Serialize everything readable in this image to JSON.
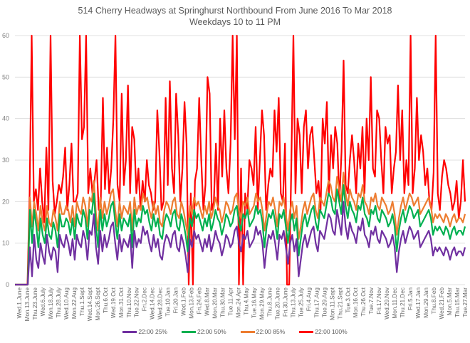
{
  "chart_data": {
    "type": "line",
    "title": "514 Cherry Headways at Springhurst Northbound From June 2016 To Mar 2018",
    "subtitle": "Weekdays 10 to 11 PM",
    "xlabel": "",
    "ylabel": "",
    "ylim": [
      0,
      60
    ],
    "yticks": [
      0,
      10,
      20,
      30,
      40,
      50,
      60
    ],
    "grid": true,
    "legend_position": "bottom",
    "x_tick_labels": [
      "Wed.1.June",
      "Mon.13.June",
      "Thu.23.June",
      "Wed.6.July",
      "Mon.18.July",
      "Thu.28.July",
      "Wed.10.Aug",
      "Mon.22.Aug",
      "Thu.1.Sept",
      "Wed.14.Sept",
      "Mon.26.Sept",
      "Thu.6.Oct",
      "Wed.19.Oct",
      "Mon.31.Oct",
      "Thu.10.Nov",
      "Tue.22.Nov",
      "Fri.2.Dec",
      "Wed.14.Dec",
      "Wed.28.Dec",
      "Tue.10.Jan",
      "Fri.20.Jan",
      "Wed.1.Feb",
      "Mon.13.Feb",
      "Fri.24.Feb",
      "Wed.8.Mar",
      "Mon.20.Mar",
      "Thu.30.Mar",
      "Tue.11.Apr",
      "Mon.24.Apr",
      "Thu.4.May",
      "Tue.16.May",
      "Mon.29.May",
      "Thu.8.June",
      "Tue.20.June",
      "Fri.30.June",
      "Thu.13.July",
      "Tue.25.July",
      "Fri.4.Aug",
      "Thu.17.Aug",
      "Tue.29.Aug",
      "Mon.11.Sept",
      "Thu.21.Sept",
      "Tue.3.Oct",
      "Mon.16.Oct",
      "Thu.26.Oct",
      "Tue.7.Nov",
      "Fri.17.Nov",
      "Wed.29.Nov",
      "Mon.11.Dec",
      "Thu.21.Dec",
      "Fri.5.Jan",
      "Wed.17.Jan",
      "Mon.29.Jan",
      "Thu.8.Feb",
      "Wed.21.Feb",
      "Mon.5.Mar",
      "Thu.15.Mar",
      "Tue.27.Mar"
    ],
    "series": [
      {
        "name": "22:00 25%",
        "color": "#7030A0",
        "values": [
          0,
          0,
          0,
          0,
          0,
          0,
          0,
          9,
          2,
          12,
          6,
          4,
          10,
          7,
          5,
          12,
          8,
          6,
          9,
          8,
          3,
          12,
          10,
          9,
          12,
          10,
          7,
          11,
          6,
          12,
          10,
          9,
          13,
          11,
          6,
          13,
          12,
          17,
          9,
          5,
          13,
          8,
          12,
          9,
          11,
          14,
          15,
          10,
          6,
          12,
          8,
          11,
          10,
          9,
          12,
          4,
          13,
          9,
          11,
          10,
          14,
          12,
          13,
          10,
          8,
          12,
          9,
          11,
          7,
          6,
          10,
          12,
          11,
          9,
          12,
          13,
          9,
          8,
          12,
          10,
          7,
          3,
          11,
          9,
          13,
          11,
          12,
          10,
          8,
          11,
          9,
          12,
          8,
          10,
          13,
          11,
          10,
          7,
          9,
          12,
          11,
          9,
          10,
          13,
          14,
          10,
          8,
          12,
          11,
          13,
          9,
          10,
          11,
          14,
          12,
          13,
          10,
          4,
          9,
          12,
          11,
          13,
          10,
          6,
          12,
          11,
          13,
          9,
          5,
          10,
          12,
          8,
          11,
          2,
          6,
          10,
          12,
          9,
          11,
          13,
          14,
          10,
          8,
          13,
          12,
          11,
          14,
          17,
          16,
          13,
          12,
          18,
          15,
          12,
          20,
          14,
          11,
          15,
          13,
          12,
          10,
          14,
          13,
          16,
          12,
          11,
          9,
          13,
          12,
          14,
          11,
          10,
          13,
          12,
          11,
          9,
          10,
          12,
          9,
          3,
          8,
          11,
          13,
          10,
          12,
          14,
          13,
          11,
          12,
          13,
          9,
          10,
          11,
          12,
          13,
          11,
          7,
          9,
          8,
          9,
          8,
          7,
          9,
          8,
          6,
          8,
          9,
          7,
          8,
          8,
          7,
          9
        ]
      },
      {
        "name": "22:00 50%",
        "color": "#00B050",
        "values": [
          0,
          0,
          0,
          0,
          0,
          0,
          0,
          18,
          10,
          18,
          14,
          9,
          16,
          12,
          10,
          16,
          12,
          11,
          15,
          13,
          9,
          17,
          14,
          14,
          16,
          15,
          12,
          16,
          11,
          17,
          15,
          14,
          18,
          16,
          11,
          18,
          17,
          22,
          14,
          9,
          18,
          13,
          17,
          14,
          16,
          19,
          20,
          15,
          11,
          17,
          13,
          16,
          15,
          14,
          17,
          9,
          18,
          14,
          16,
          15,
          19,
          17,
          18,
          15,
          13,
          17,
          14,
          16,
          12,
          11,
          15,
          17,
          16,
          14,
          17,
          18,
          14,
          13,
          17,
          15,
          12,
          8,
          16,
          14,
          18,
          16,
          17,
          15,
          13,
          16,
          14,
          17,
          13,
          15,
          18,
          16,
          15,
          12,
          14,
          17,
          16,
          14,
          15,
          18,
          19,
          15,
          13,
          17,
          16,
          18,
          14,
          15,
          16,
          19,
          17,
          18,
          15,
          9,
          14,
          17,
          16,
          18,
          15,
          11,
          17,
          16,
          18,
          14,
          10,
          15,
          17,
          13,
          16,
          7,
          11,
          15,
          17,
          14,
          16,
          18,
          19,
          15,
          13,
          18,
          17,
          16,
          19,
          22,
          21,
          18,
          17,
          23,
          20,
          17,
          24,
          19,
          16,
          20,
          18,
          17,
          15,
          19,
          18,
          21,
          17,
          16,
          14,
          18,
          17,
          19,
          16,
          15,
          18,
          17,
          16,
          14,
          15,
          17,
          14,
          8,
          13,
          16,
          18,
          15,
          17,
          19,
          18,
          16,
          17,
          18,
          14,
          15,
          16,
          17,
          18,
          16,
          12,
          14,
          13,
          14,
          13,
          12,
          14,
          13,
          11,
          13,
          14,
          12,
          13,
          13,
          12,
          14
        ]
      },
      {
        "name": "22:00 85%",
        "color": "#ED7D31",
        "values": [
          0,
          0,
          0,
          0,
          0,
          0,
          0,
          21,
          14,
          20,
          17,
          13,
          19,
          15,
          13,
          19,
          15,
          14,
          18,
          16,
          13,
          20,
          17,
          17,
          19,
          18,
          15,
          19,
          14,
          20,
          18,
          17,
          21,
          19,
          14,
          21,
          20,
          25,
          17,
          13,
          21,
          16,
          20,
          17,
          19,
          22,
          23,
          18,
          14,
          20,
          16,
          19,
          18,
          17,
          20,
          13,
          21,
          17,
          19,
          18,
          22,
          20,
          21,
          18,
          16,
          20,
          17,
          19,
          15,
          14,
          18,
          20,
          19,
          17,
          20,
          21,
          17,
          16,
          20,
          18,
          15,
          12,
          19,
          17,
          21,
          19,
          20,
          18,
          16,
          19,
          17,
          20,
          16,
          18,
          21,
          19,
          18,
          15,
          17,
          20,
          19,
          17,
          18,
          21,
          22,
          18,
          16,
          20,
          19,
          21,
          17,
          18,
          19,
          22,
          20,
          21,
          18,
          13,
          17,
          20,
          19,
          21,
          18,
          14,
          20,
          19,
          21,
          17,
          13,
          18,
          20,
          16,
          19,
          11,
          14,
          18,
          20,
          17,
          19,
          21,
          22,
          18,
          16,
          21,
          20,
          19,
          22,
          25,
          24,
          21,
          20,
          26,
          23,
          20,
          27,
          22,
          19,
          23,
          21,
          20,
          18,
          22,
          21,
          24,
          20,
          19,
          17,
          21,
          20,
          22,
          19,
          18,
          21,
          20,
          19,
          17,
          18,
          20,
          17,
          12,
          16,
          19,
          21,
          18,
          20,
          22,
          21,
          19,
          20,
          21,
          17,
          18,
          19,
          20,
          21,
          19,
          15,
          17,
          16,
          17,
          16,
          15,
          17,
          16,
          14,
          16,
          17,
          15,
          16,
          16,
          15,
          17
        ]
      },
      {
        "name": "22:00 100%",
        "color": "#FF0000",
        "values": [
          0,
          0,
          0,
          0,
          0,
          0,
          0,
          22,
          60,
          20,
          23,
          18,
          28,
          20,
          15,
          33,
          18,
          60,
          25,
          17,
          20,
          24,
          22,
          26,
          33,
          18,
          24,
          34,
          20,
          20,
          22,
          60,
          35,
          38,
          60,
          22,
          28,
          22,
          25,
          30,
          18,
          20,
          45,
          23,
          33,
          22,
          28,
          40,
          60,
          24,
          20,
          46,
          24,
          30,
          48,
          22,
          38,
          35,
          22,
          28,
          18,
          25,
          20,
          30,
          24,
          22,
          18,
          20,
          42,
          32,
          18,
          20,
          45,
          24,
          49,
          28,
          22,
          46,
          36,
          20,
          28,
          44,
          34,
          0,
          22,
          0,
          25,
          28,
          45,
          30,
          18,
          24,
          50,
          46,
          18,
          20,
          34,
          18,
          40,
          26,
          42,
          28,
          22,
          34,
          60,
          35,
          60,
          0,
          28,
          0,
          22,
          18,
          30,
          28,
          24,
          38,
          18,
          30,
          42,
          36,
          18,
          24,
          28,
          26,
          42,
          32,
          45,
          22,
          20,
          34,
          0,
          0,
          28,
          60,
          22,
          40,
          36,
          22,
          38,
          42,
          28,
          36,
          38,
          30,
          22,
          25,
          18,
          40,
          34,
          44,
          22,
          36,
          28,
          38,
          34,
          20,
          32,
          54,
          24,
          22,
          30,
          36,
          30,
          22,
          34,
          28,
          38,
          22,
          40,
          30,
          50,
          28,
          26,
          42,
          40,
          30,
          22,
          38,
          34,
          36,
          22,
          28,
          32,
          48,
          30,
          42,
          22,
          30,
          24,
          60,
          22,
          28,
          45,
          30,
          36,
          32,
          24,
          28,
          20,
          18,
          27,
          60,
          22,
          18,
          26,
          30,
          28,
          24,
          22,
          18,
          20,
          25,
          16,
          20,
          30,
          20
        ]
      }
    ]
  }
}
